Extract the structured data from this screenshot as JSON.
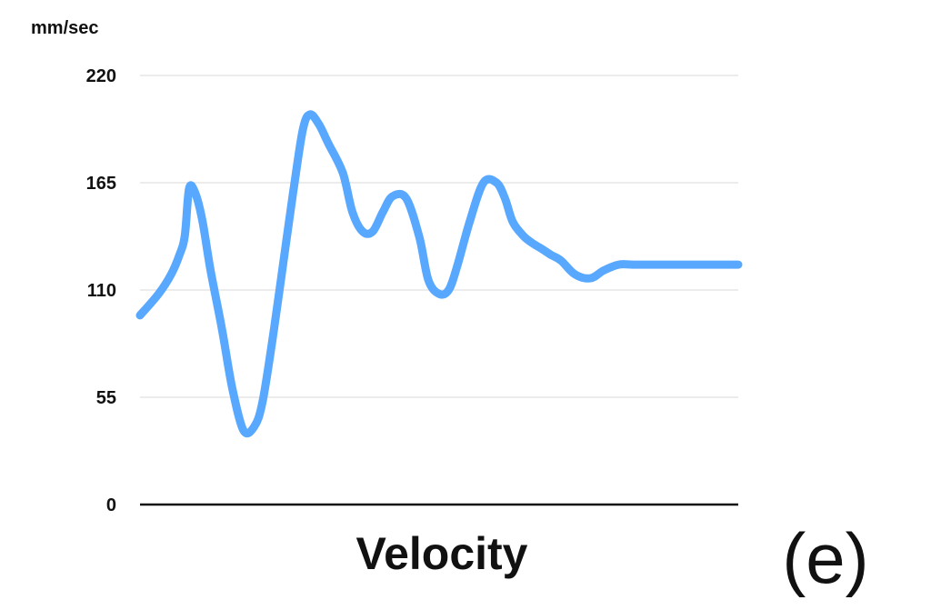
{
  "chart_data": {
    "type": "line",
    "title": "Velocity",
    "ylabel": "mm/sec",
    "xlabel": "",
    "panel_label": "(e)",
    "ylim": [
      0,
      220
    ],
    "yticks": [
      0,
      55,
      110,
      165,
      220
    ],
    "ytick_labels": [
      "0",
      "55",
      "110",
      "165",
      "220"
    ],
    "grid": true,
    "x_axis_ticks": false,
    "x": [
      0,
      3.1,
      5.2,
      6.6,
      7.5,
      8.2,
      9.2,
      10.4,
      11.8,
      13.7,
      15.4,
      17.3,
      19.1,
      20.5,
      22.4,
      24.0,
      25.6,
      27.2,
      28.4,
      29.9,
      31.5,
      33.9,
      35.5,
      37.2,
      38.9,
      40.6,
      42.2,
      44.5,
      46.7,
      48.2,
      50.0,
      51.6,
      53.0,
      55.1,
      57.4,
      59.6,
      61.0,
      62.3,
      64.0,
      65.6,
      67.2,
      68.7,
      70.4,
      72.7,
      75.3,
      77.5,
      80.0,
      82.3,
      83.9,
      85.7,
      88.1,
      90.4,
      92.5,
      94.2,
      95.3,
      96.8,
      98.1,
      100
    ],
    "series": [
      {
        "color": "#59A8FF",
        "values": [
          97,
          108,
          118,
          128,
          138,
          162,
          160,
          146,
          120,
          90,
          60,
          38,
          40,
          53,
          90,
          125,
          160,
          192,
          200,
          195,
          185,
          170,
          150,
          140,
          140,
          150,
          158,
          157,
          137,
          115,
          108,
          110,
          122,
          145,
          165,
          165,
          157,
          145,
          138,
          134,
          131,
          128,
          125,
          118,
          116,
          120,
          123,
          123,
          123,
          123,
          123,
          123,
          123,
          123,
          123,
          123,
          123,
          123
        ]
      }
    ],
    "line_color": "#59A8FF",
    "grid_color": "#E6E6E6",
    "axis_color": "#111111"
  }
}
